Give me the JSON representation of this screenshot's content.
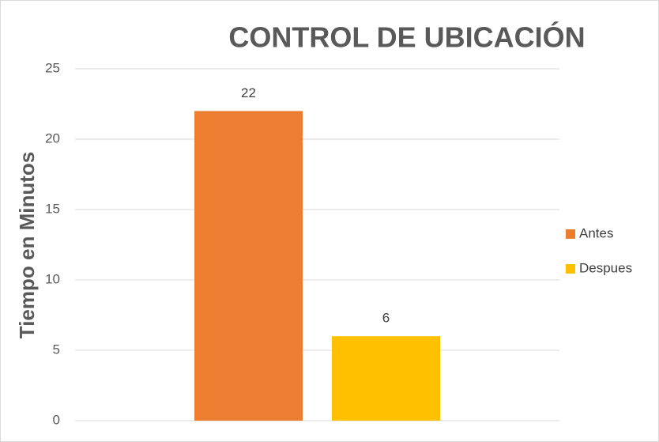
{
  "chart_data": {
    "type": "bar",
    "title": "CONTROL DE UBICACIÓN",
    "y_label": "Tiempo en Minutos",
    "categories": [
      null
    ],
    "series": [
      {
        "name": "Antes",
        "color": "#ed7d31",
        "values": [
          22
        ]
      },
      {
        "name": "Despues",
        "color": "#ffc000",
        "values": [
          6
        ]
      }
    ],
    "ylim": [
      0,
      25
    ],
    "yticks": [
      0,
      5,
      10,
      15,
      20,
      25
    ],
    "grid": true,
    "legend": "right"
  }
}
